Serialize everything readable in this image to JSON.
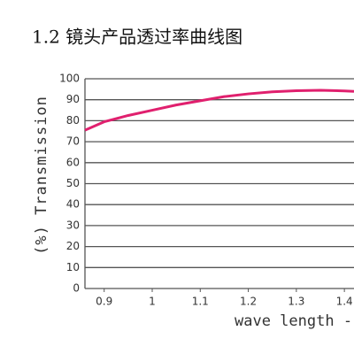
{
  "chart_data": {
    "type": "line",
    "title": "1.2 镜头产品透过率曲线图",
    "y_label": "(%) Transmission",
    "x_label": "wave length -",
    "x": [
      0.86,
      0.9,
      0.95,
      1.0,
      1.05,
      1.1,
      1.15,
      1.2,
      1.25,
      1.3,
      1.35,
      1.4,
      1.42
    ],
    "series": [
      {
        "name": "Transmission",
        "color": "#e0206e",
        "values": [
          75.5,
          79.5,
          82.5,
          85,
          87.5,
          89.5,
          91.5,
          92.8,
          93.8,
          94.3,
          94.5,
          94.2,
          94
        ]
      }
    ],
    "xlim": [
      0.86,
      1.42
    ],
    "xticks": [
      0.9,
      1,
      1.1,
      1.2,
      1.3,
      1.4
    ],
    "ylim": [
      0,
      100
    ],
    "yticks": [
      0,
      10,
      20,
      30,
      40,
      50,
      60,
      70,
      80,
      90,
      100
    ],
    "grid": true
  }
}
